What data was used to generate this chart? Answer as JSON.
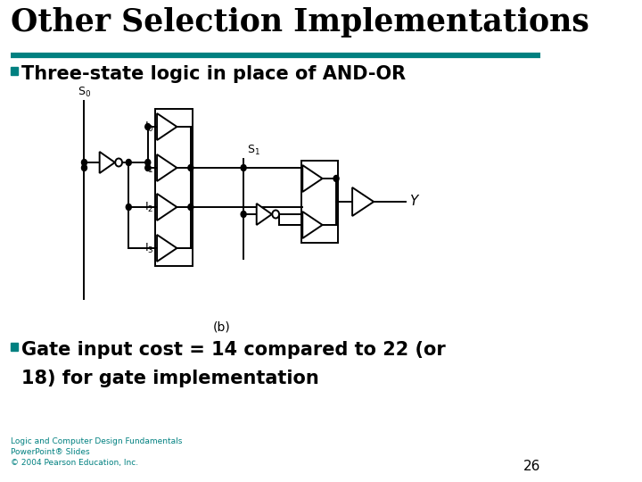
{
  "title": "Other Selection Implementations",
  "bullet1": "Three-state logic in place of AND-OR",
  "bullet2_line1": "Gate input cost = 14 compared to 22 (or",
  "bullet2_line2": "18) for gate implementation",
  "diagram_label": "(b)",
  "output_label": "Y",
  "footer_line1": "Logic and Computer Design Fundamentals",
  "footer_line2": "PowerPoint® Slides",
  "footer_line3": "© 2004 Pearson Education, Inc.",
  "page_number": "26",
  "teal_color": "#008080",
  "title_color": "#000000",
  "bg_color": "#FFFFFF",
  "text_color": "#000000",
  "footer_color": "#008080",
  "diagram_color": "#000000"
}
